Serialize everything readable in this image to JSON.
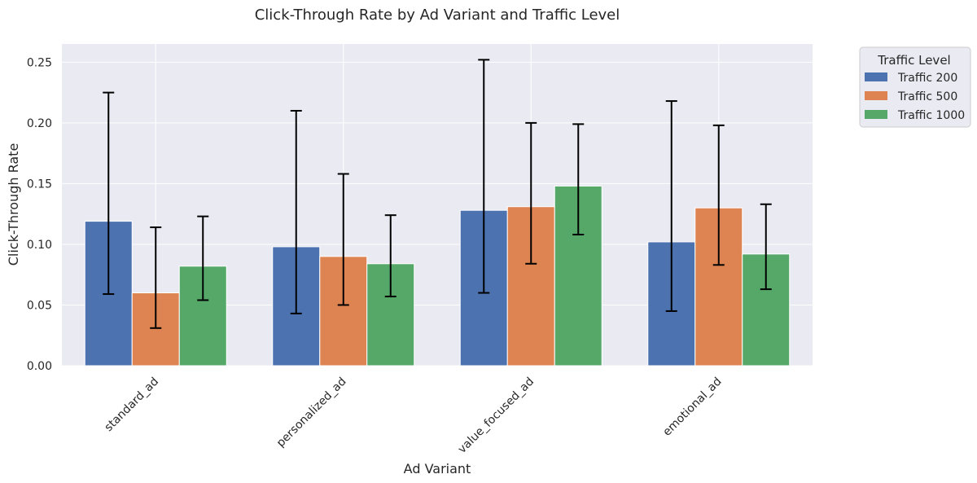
{
  "chart_data": {
    "type": "bar",
    "title": "Click-Through Rate by Ad Variant and Traffic Level",
    "xlabel": "Ad Variant",
    "ylabel": "Click-Through Rate",
    "categories": [
      "standard_ad",
      "personalized_ad",
      "value_focused_ad",
      "emotional_ad"
    ],
    "ylim": [
      0,
      0.265
    ],
    "yticks": [
      "0.00",
      "0.05",
      "0.10",
      "0.15",
      "0.20",
      "0.25"
    ],
    "grid": true,
    "legend": {
      "title": "Traffic Level",
      "placement": "outside-top-right"
    },
    "series": [
      {
        "name": "Traffic 200",
        "color": "#4c72b0",
        "values": [
          0.119,
          0.098,
          0.128,
          0.102
        ],
        "error_low": [
          0.059,
          0.043,
          0.06,
          0.045
        ],
        "error_high": [
          0.225,
          0.21,
          0.252,
          0.218
        ]
      },
      {
        "name": "Traffic 500",
        "color": "#dd8452",
        "values": [
          0.06,
          0.09,
          0.131,
          0.13
        ],
        "error_low": [
          0.031,
          0.05,
          0.084,
          0.083
        ],
        "error_high": [
          0.114,
          0.158,
          0.2,
          0.198
        ]
      },
      {
        "name": "Traffic 1000",
        "color": "#55a868",
        "values": [
          0.082,
          0.084,
          0.148,
          0.092
        ],
        "error_low": [
          0.054,
          0.057,
          0.108,
          0.063
        ],
        "error_high": [
          0.123,
          0.124,
          0.199,
          0.133
        ]
      }
    ]
  }
}
